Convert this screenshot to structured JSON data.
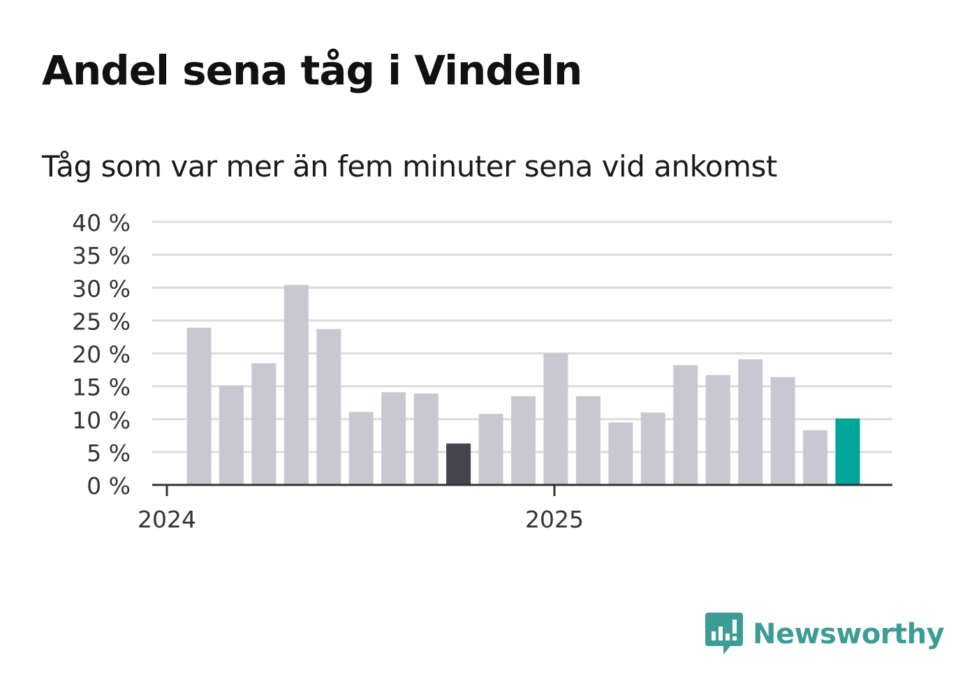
{
  "title": "Andel sena tåg i Vindeln",
  "subtitle": "Tåg som var mer än fem minuter sena vid ankomst",
  "brand": "Newsworthy",
  "colors": {
    "bar_default": "#c9c8d2",
    "bar_highlight_dark": "#45434f",
    "bar_highlight_teal": "#00a699",
    "gridline": "#dcdcdc",
    "axis": "#333333",
    "brand": "#3d9c94"
  },
  "chart_data": {
    "type": "bar",
    "title": "Andel sena tåg i Vindeln",
    "subtitle": "Tåg som var mer än fem minuter sena vid ankomst",
    "xlabel": "",
    "ylabel": "",
    "ylim": [
      0,
      40
    ],
    "y_ticks": [
      0,
      5,
      10,
      15,
      20,
      25,
      30,
      35,
      40
    ],
    "y_tick_labels": [
      "0 %",
      "5 %",
      "10 %",
      "15 %",
      "20 %",
      "25 %",
      "30 %",
      "35 %",
      "40 %"
    ],
    "x_tick_labels": [
      "2024",
      "2025"
    ],
    "grid": true,
    "categories": [
      "2024-01",
      "2024-02",
      "2024-03",
      "2024-04",
      "2024-05",
      "2024-06",
      "2024-07",
      "2024-08",
      "2024-09",
      "2024-10",
      "2024-11",
      "2024-12",
      "2025-01",
      "2025-02",
      "2025-03",
      "2025-04",
      "2025-05",
      "2025-06",
      "2025-07",
      "2025-08",
      "2025-09",
      "2025-10"
    ],
    "values": [
      23.9,
      15.1,
      18.5,
      30.4,
      23.7,
      11.1,
      14.1,
      13.9,
      6.3,
      10.8,
      13.5,
      20.0,
      13.5,
      9.5,
      11.0,
      18.2,
      16.7,
      19.1,
      16.4,
      8.3,
      10.1,
      0
    ],
    "highlights": {
      "8": "dark",
      "20": "teal"
    }
  }
}
